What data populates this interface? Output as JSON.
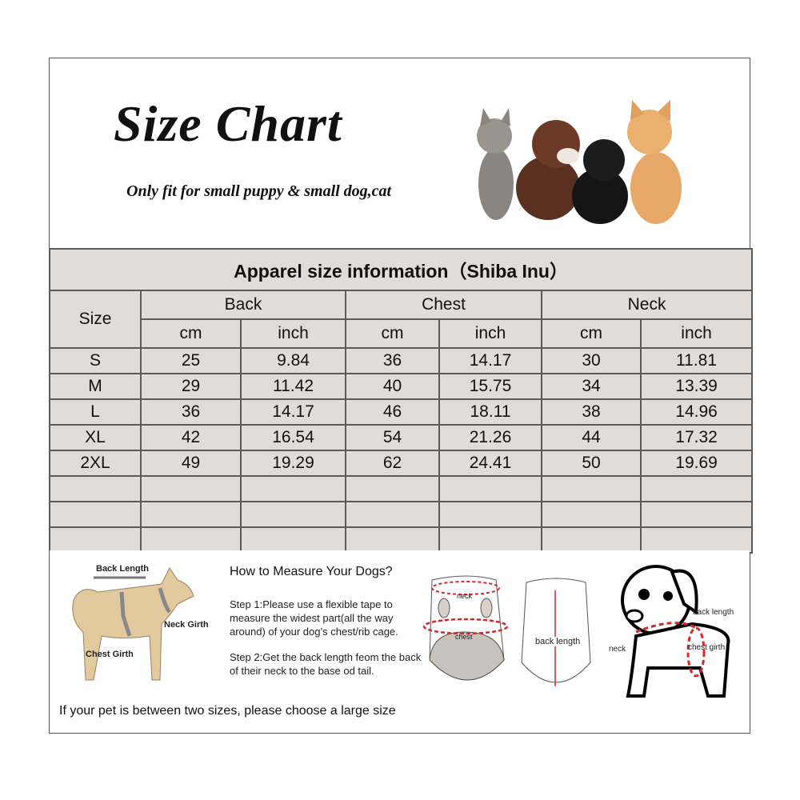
{
  "header": {
    "title": "Size Chart",
    "subtitle": "Only fit for  small puppy & small dog,cat"
  },
  "table": {
    "caption": "Apparel  size  information（Shiba Inu）",
    "size_header": "Size",
    "groups": [
      "Back",
      "Chest",
      "Neck"
    ],
    "units": [
      "cm",
      "inch",
      "cm",
      "inch",
      "cm",
      "inch"
    ],
    "rows": [
      [
        "S",
        "25",
        "9.84",
        "36",
        "14.17",
        "30",
        "11.81"
      ],
      [
        "M",
        "29",
        "11.42",
        "40",
        "15.75",
        "34",
        "13.39"
      ],
      [
        "L",
        "36",
        "14.17",
        "46",
        "18.11",
        "38",
        "14.96"
      ],
      [
        "XL",
        "42",
        "16.54",
        "54",
        "21.26",
        "44",
        "17.32"
      ],
      [
        "2XL",
        "49",
        "19.29",
        "62",
        "24.41",
        "50",
        "19.69"
      ]
    ],
    "empty_rows": 3
  },
  "measure": {
    "dog_labels": {
      "back": "Back Length",
      "neck": "Neck Girth",
      "chest": "Chest Girth"
    },
    "heading": "How to Measure Your Dogs?",
    "step1": "Step 1:Please use a flexible tape to measure the widest part(all the way around) of your dog’s chest/rib cage.",
    "step2": "Step 2:Get the back length feom the back of their neck to the base od tail.",
    "garment_labels": {
      "neck": "neck",
      "chest": "chest",
      "back_length": "back length"
    },
    "puppy_labels": {
      "back_length": "back length",
      "neck": "neck",
      "chest_girth": "chest girth"
    },
    "note": "If your pet is between two sizes, please choose a large size"
  },
  "colors": {
    "table_bg": "#e1dcd8",
    "border": "#5a5a5a",
    "measure_red": "#d62a2a"
  }
}
